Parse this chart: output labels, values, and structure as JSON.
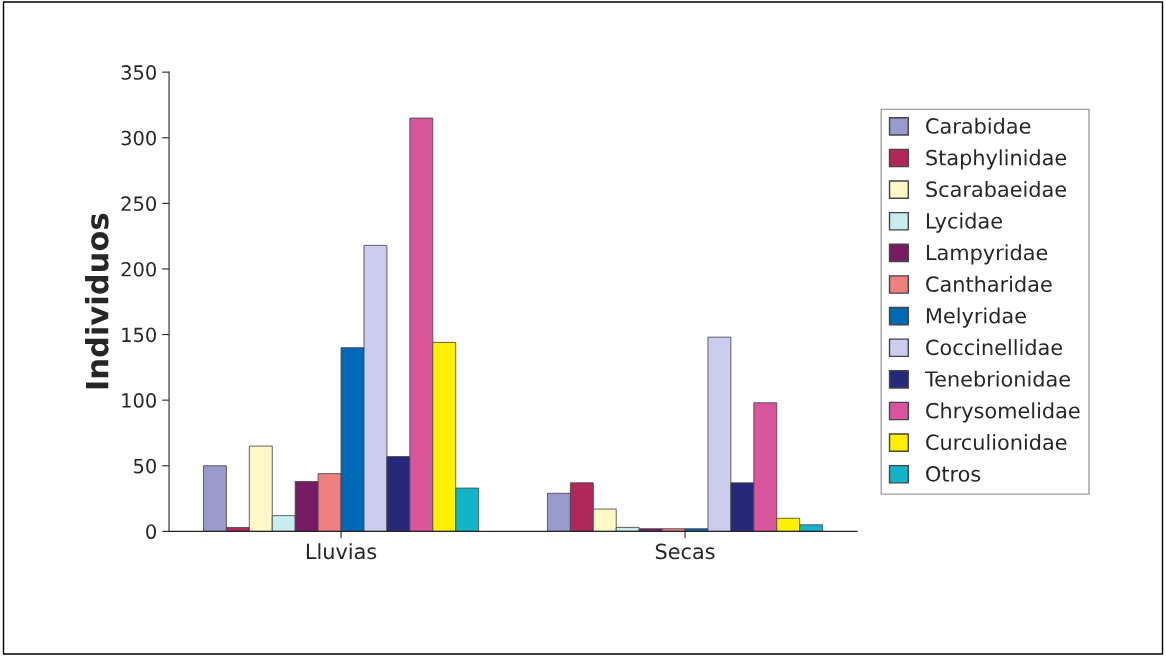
{
  "chart_data": {
    "type": "bar",
    "ylabel": "Individuos",
    "categories": [
      "Lluvias",
      "Secas"
    ],
    "series": [
      {
        "name": "Carabidae",
        "color": "#9999cc",
        "values": [
          50,
          29
        ]
      },
      {
        "name": "Staphylinidae",
        "color": "#b0285a",
        "values": [
          3,
          37
        ]
      },
      {
        "name": "Scarabaeidae",
        "color": "#fff8c8",
        "values": [
          65,
          17
        ]
      },
      {
        "name": "Lycidae",
        "color": "#c8ecf0",
        "values": [
          12,
          3
        ]
      },
      {
        "name": "Lampyridae",
        "color": "#751c63",
        "values": [
          38,
          2
        ]
      },
      {
        "name": "Cantharidae",
        "color": "#f08080",
        "values": [
          44,
          2
        ]
      },
      {
        "name": "Melyridae",
        "color": "#0068b4",
        "values": [
          140,
          2
        ]
      },
      {
        "name": "Coccinellidae",
        "color": "#ccccee",
        "values": [
          218,
          148
        ]
      },
      {
        "name": "Tenebrionidae",
        "color": "#26287a",
        "values": [
          57,
          37
        ]
      },
      {
        "name": "Chrysomelidae",
        "color": "#d9569f",
        "values": [
          315,
          98
        ]
      },
      {
        "name": "Curculionidae",
        "color": "#fff000",
        "values": [
          144,
          10
        ]
      },
      {
        "name": "Otros",
        "color": "#14b4c8",
        "values": [
          33,
          5
        ]
      }
    ],
    "ylim": [
      0,
      350
    ],
    "yticks": [
      0,
      50,
      100,
      150,
      200,
      250,
      300,
      350
    ],
    "grid": false,
    "legend": "right"
  }
}
